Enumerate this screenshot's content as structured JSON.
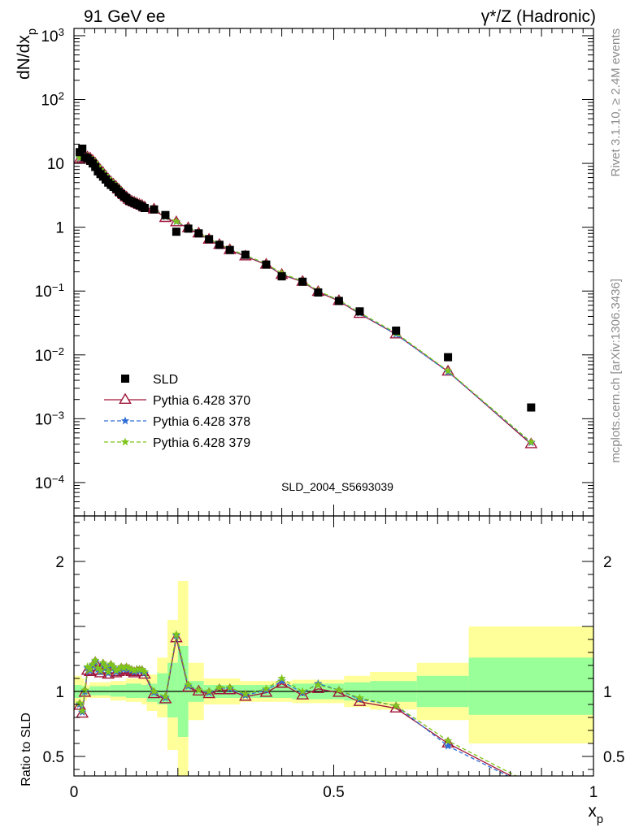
{
  "header": {
    "left": "91 GeV ee",
    "right": "γ*/Z (Hadronic)"
  },
  "side_text": {
    "rivet": "Rivet 3.1.10, ≥ 2.4M events",
    "source": "mcplots.cern.ch [arXiv:1306.3436]"
  },
  "colors": {
    "data": "#000000",
    "p370": "#a0163a",
    "p378": "#2f6ed6",
    "p379": "#7fc41c",
    "band_yellow": "#ffff99",
    "band_green": "#99ff99"
  },
  "chart_data": [
    {
      "type": "scatter",
      "title": "",
      "ylabel": "dN/dx_p",
      "yscale": "log",
      "ylim": [
        3e-05,
        1300
      ],
      "xlim": [
        0,
        1
      ],
      "yticks": [
        "10^{-4}",
        "10^{-3}",
        "10^{-2}",
        "10^{-1}",
        "1",
        "10",
        "10^{2}",
        "10^{3}"
      ],
      "analysis_label": "SLD_2004_S5693039",
      "legend_position": "bottom-left",
      "legend": [
        "SLD",
        "Pythia 6.428 370",
        "Pythia 6.428 378",
        "Pythia 6.428 379"
      ],
      "x": [
        0.011,
        0.016,
        0.021,
        0.026,
        0.031,
        0.036,
        0.041,
        0.046,
        0.051,
        0.056,
        0.061,
        0.066,
        0.071,
        0.076,
        0.081,
        0.086,
        0.091,
        0.096,
        0.101,
        0.106,
        0.111,
        0.116,
        0.121,
        0.126,
        0.131,
        0.136,
        0.154,
        0.176,
        0.197,
        0.22,
        0.24,
        0.26,
        0.28,
        0.3,
        0.33,
        0.37,
        0.4,
        0.44,
        0.47,
        0.51,
        0.55,
        0.62,
        0.72,
        0.88
      ],
      "series": [
        {
          "name": "SLD",
          "marker": "square",
          "values": [
            15.0,
            17.0,
            12.5,
            12.0,
            11.0,
            10.0,
            8.8,
            7.5,
            6.8,
            6.2,
            5.6,
            5.0,
            4.6,
            4.3,
            4.0,
            3.6,
            3.3,
            3.05,
            2.85,
            2.6,
            2.5,
            2.4,
            2.3,
            2.2,
            2.1,
            2.0,
            1.9,
            1.55,
            0.85,
            0.95,
            0.8,
            0.65,
            0.53,
            0.44,
            0.37,
            0.26,
            0.17,
            0.14,
            0.095,
            0.07,
            0.048,
            0.024,
            0.0092,
            0.0015
          ]
        },
        {
          "name": "Pythia 6.428 370",
          "marker": "open-triangle",
          "values": [
            11.5,
            12.0,
            12.0,
            12.5,
            12.0,
            11.0,
            10.0,
            8.8,
            7.8,
            7.1,
            6.3,
            5.6,
            5.1,
            4.7,
            4.3,
            3.9,
            3.5,
            3.2,
            2.95,
            2.7,
            2.55,
            2.45,
            2.35,
            2.25,
            2.18,
            2.05,
            1.9,
            1.4,
            1.2,
            0.97,
            0.8,
            0.64,
            0.53,
            0.44,
            0.35,
            0.26,
            0.18,
            0.14,
            0.097,
            0.07,
            0.044,
            0.021,
            0.0055,
            0.0004
          ]
        },
        {
          "name": "Pythia 6.428 378",
          "marker": "star",
          "values": [
            12.0,
            12.5,
            12.2,
            12.8,
            12.2,
            11.2,
            10.2,
            8.9,
            7.9,
            7.2,
            6.4,
            5.7,
            5.2,
            4.8,
            4.4,
            4.0,
            3.55,
            3.25,
            3.0,
            2.75,
            2.6,
            2.5,
            2.4,
            2.3,
            2.2,
            2.08,
            1.92,
            1.45,
            1.22,
            0.98,
            0.81,
            0.65,
            0.54,
            0.45,
            0.36,
            0.265,
            0.185,
            0.142,
            0.1,
            0.071,
            0.045,
            0.021,
            0.0054,
            0.00042
          ]
        },
        {
          "name": "Pythia 6.428 379",
          "marker": "star",
          "values": [
            12.2,
            12.7,
            12.3,
            13.0,
            12.3,
            11.3,
            10.3,
            9.0,
            8.0,
            7.3,
            6.5,
            5.8,
            5.3,
            4.85,
            4.45,
            4.05,
            3.6,
            3.3,
            3.05,
            2.8,
            2.65,
            2.55,
            2.45,
            2.35,
            2.25,
            2.1,
            1.95,
            1.47,
            1.23,
            0.99,
            0.82,
            0.66,
            0.545,
            0.455,
            0.365,
            0.268,
            0.19,
            0.143,
            0.101,
            0.072,
            0.046,
            0.022,
            0.0056,
            0.00043
          ]
        }
      ]
    },
    {
      "type": "line",
      "ylabel": "Ratio to SLD",
      "xlabel": "x_p",
      "ylim": [
        0.35,
        2.35
      ],
      "xlim": [
        0,
        1
      ],
      "yticks": [
        0.5,
        1,
        2
      ],
      "xticks": [
        0,
        0.5,
        1
      ],
      "reference_line": 1,
      "x": [
        0.011,
        0.016,
        0.021,
        0.026,
        0.031,
        0.036,
        0.041,
        0.046,
        0.051,
        0.056,
        0.061,
        0.066,
        0.071,
        0.076,
        0.081,
        0.086,
        0.091,
        0.096,
        0.101,
        0.106,
        0.111,
        0.116,
        0.121,
        0.126,
        0.131,
        0.136,
        0.154,
        0.176,
        0.197,
        0.22,
        0.24,
        0.26,
        0.28,
        0.3,
        0.33,
        0.37,
        0.4,
        0.44,
        0.47,
        0.51,
        0.55,
        0.62,
        0.72,
        0.88
      ],
      "series": [
        {
          "name": "Pythia 6.428 370",
          "values": [
            0.89,
            0.83,
            0.99,
            1.16,
            1.15,
            1.19,
            1.22,
            1.16,
            1.14,
            1.2,
            1.17,
            1.13,
            1.19,
            1.17,
            1.14,
            1.15,
            1.17,
            1.16,
            1.17,
            1.16,
            1.15,
            1.14,
            1.15,
            1.15,
            1.15,
            1.13,
            0.98,
            0.94,
            1.41,
            1.03,
            1.0,
            0.98,
            1.01,
            1.01,
            0.96,
            0.99,
            1.06,
            0.97,
            1.02,
            0.99,
            0.92,
            0.87,
            0.6,
            0.27
          ]
        },
        {
          "name": "Pythia 6.428 378",
          "values": [
            0.9,
            0.84,
            1.0,
            1.18,
            1.16,
            1.2,
            1.23,
            1.17,
            1.15,
            1.21,
            1.18,
            1.14,
            1.2,
            1.18,
            1.15,
            1.16,
            1.18,
            1.17,
            1.18,
            1.17,
            1.16,
            1.15,
            1.16,
            1.16,
            1.16,
            1.14,
            0.99,
            0.95,
            1.43,
            1.04,
            1.01,
            0.99,
            1.03,
            1.02,
            0.97,
            1.01,
            1.08,
            0.99,
            1.06,
            1.01,
            0.94,
            0.89,
            0.58,
            0.26
          ]
        },
        {
          "name": "Pythia 6.428 379",
          "values": [
            0.91,
            0.85,
            1.01,
            1.19,
            1.17,
            1.21,
            1.24,
            1.18,
            1.16,
            1.22,
            1.19,
            1.15,
            1.21,
            1.19,
            1.16,
            1.17,
            1.19,
            1.18,
            1.19,
            1.18,
            1.17,
            1.16,
            1.17,
            1.17,
            1.17,
            1.15,
            1.0,
            0.96,
            1.44,
            1.05,
            1.01,
            1.0,
            1.03,
            1.03,
            0.98,
            1.02,
            1.1,
            1.0,
            1.05,
            1.01,
            0.95,
            0.89,
            0.62,
            0.29
          ]
        }
      ],
      "bands": {
        "x_edges": [
          0.0,
          0.015,
          0.02,
          0.025,
          0.03,
          0.045,
          0.07,
          0.1,
          0.13,
          0.14,
          0.16,
          0.18,
          0.2,
          0.22,
          0.25,
          0.32,
          0.42,
          0.52,
          0.57,
          0.66,
          0.76,
          1.0
        ],
        "green": [
          [
            0.95,
            1.05
          ],
          [
            0.96,
            1.04
          ],
          [
            0.97,
            1.03
          ],
          [
            0.98,
            1.02
          ],
          [
            0.97,
            1.04
          ],
          [
            0.97,
            1.04
          ],
          [
            0.96,
            1.05
          ],
          [
            0.95,
            1.06
          ],
          [
            0.95,
            1.05
          ],
          [
            0.92,
            1.06
          ],
          [
            0.9,
            1.14
          ],
          [
            0.8,
            1.22
          ],
          [
            0.65,
            1.35
          ],
          [
            0.92,
            1.08
          ],
          [
            0.95,
            1.05
          ],
          [
            0.95,
            1.05
          ],
          [
            0.94,
            1.06
          ],
          [
            0.93,
            1.07
          ],
          [
            0.92,
            1.08
          ],
          [
            0.88,
            1.12
          ],
          [
            0.82,
            1.26
          ]
        ],
        "yellow": [
          [
            0.88,
            1.12
          ],
          [
            0.9,
            1.1
          ],
          [
            0.93,
            1.07
          ],
          [
            0.95,
            1.05
          ],
          [
            0.95,
            1.07
          ],
          [
            0.95,
            1.07
          ],
          [
            0.93,
            1.08
          ],
          [
            0.92,
            1.1
          ],
          [
            0.9,
            1.11
          ],
          [
            0.85,
            1.13
          ],
          [
            0.8,
            1.26
          ],
          [
            0.55,
            1.55
          ],
          [
            0.3,
            1.85
          ],
          [
            0.78,
            1.22
          ],
          [
            0.9,
            1.1
          ],
          [
            0.92,
            1.08
          ],
          [
            0.91,
            1.09
          ],
          [
            0.88,
            1.12
          ],
          [
            0.86,
            1.15
          ],
          [
            0.78,
            1.22
          ],
          [
            0.6,
            1.5
          ]
        ]
      }
    }
  ]
}
